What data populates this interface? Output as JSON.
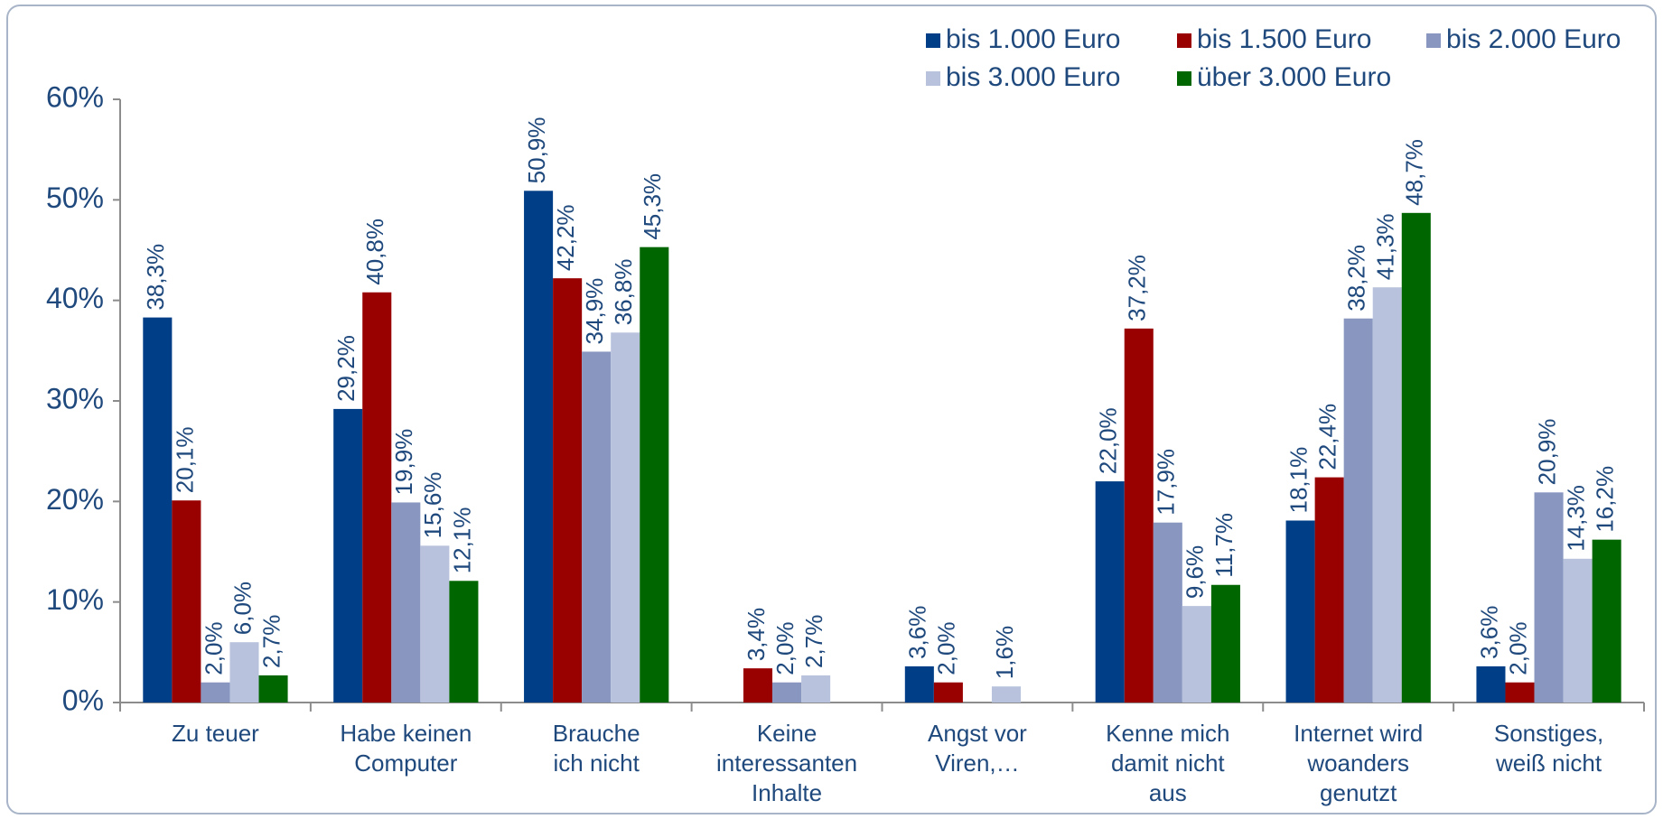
{
  "chart_data": {
    "type": "bar",
    "categories": [
      "Zu teuer",
      "Habe keinen\nComputer",
      "Brauche\nich nicht",
      "Keine\ninteressanten\nInhalte",
      "Angst vor\nViren,…",
      "Kenne mich\ndamit nicht\naus",
      "Internet wird\nwoanders\ngenutzt",
      "Sonstiges,\nweiß nicht"
    ],
    "series": [
      {
        "name": "bis 1.000 Euro",
        "color": "#003f87",
        "values": [
          38.3,
          29.2,
          50.9,
          null,
          3.6,
          22.0,
          18.1,
          3.6
        ],
        "value_labels": [
          "38,3%",
          "29,2%",
          "50,9%",
          null,
          "3,6%",
          "22,0%",
          "18,1%",
          "3,6%"
        ]
      },
      {
        "name": "bis 1.500 Euro",
        "color": "#990000",
        "values": [
          20.1,
          40.8,
          42.2,
          3.4,
          2.0,
          37.2,
          22.4,
          2.0
        ],
        "value_labels": [
          "20,1%",
          "40,8%",
          "42,2%",
          "3,4%",
          "2,0%",
          "37,2%",
          "22,4%",
          "2,0%"
        ]
      },
      {
        "name": "bis 2.000 Euro",
        "color": "#8896c0",
        "values": [
          2.0,
          19.9,
          34.9,
          2.0,
          null,
          17.9,
          38.2,
          20.9
        ],
        "value_labels": [
          "2,0%",
          "19,9%",
          "34,9%",
          "2,0%",
          null,
          "17,9%",
          "38,2%",
          "20,9%"
        ]
      },
      {
        "name": "bis 3.000 Euro",
        "color": "#b8c2dc",
        "values": [
          6.0,
          15.6,
          36.8,
          2.7,
          1.6,
          9.6,
          41.3,
          14.3
        ],
        "value_labels": [
          "6,0%",
          "15,6%",
          "36,8%",
          "2,7%",
          "1,6%",
          "9,6%",
          "41,3%",
          "14,3%"
        ]
      },
      {
        "name": "über 3.000 Euro",
        "color": "#006600",
        "values": [
          2.7,
          12.1,
          45.3,
          null,
          null,
          11.7,
          48.7,
          16.2
        ],
        "value_labels": [
          "2,7%",
          "12,1%",
          "45,3%",
          null,
          null,
          "11,7%",
          "48,7%",
          "16,2%"
        ]
      }
    ],
    "ylim": [
      0,
      60
    ],
    "yticks": [
      {
        "value": 0,
        "label": "0%"
      },
      {
        "value": 10,
        "label": "10%"
      },
      {
        "value": 20,
        "label": "20%"
      },
      {
        "value": 30,
        "label": "30%"
      },
      {
        "value": 40,
        "label": "40%"
      },
      {
        "value": 50,
        "label": "50%"
      },
      {
        "value": 60,
        "label": "60%"
      }
    ],
    "legend": "top-right"
  }
}
